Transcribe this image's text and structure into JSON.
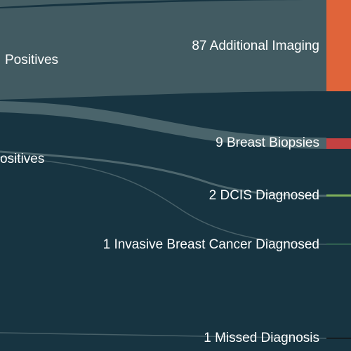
{
  "diagram": {
    "type": "sankey",
    "colors": {
      "background": "#173441",
      "band": "#4a6368",
      "band_light": "#5c7479",
      "imaging": "#e0643a",
      "biopsy": "#c44141",
      "dcis": "#7faf5a",
      "invasive": "#3f7a5a",
      "missed": "#111111"
    },
    "sources": [
      {
        "label": "Positives"
      },
      {
        "label": "ositives"
      }
    ],
    "targets": [
      {
        "label": "87 Additional Imaging",
        "value": 87
      },
      {
        "label": "9 Breast Biopsies",
        "value": 9
      },
      {
        "label": "2 DCIS Diagnosed",
        "value": 2
      },
      {
        "label": "1 Invasive Breast Cancer Diagnosed",
        "value": 1
      },
      {
        "label": "1 Missed Diagnosis",
        "value": 1
      }
    ]
  }
}
